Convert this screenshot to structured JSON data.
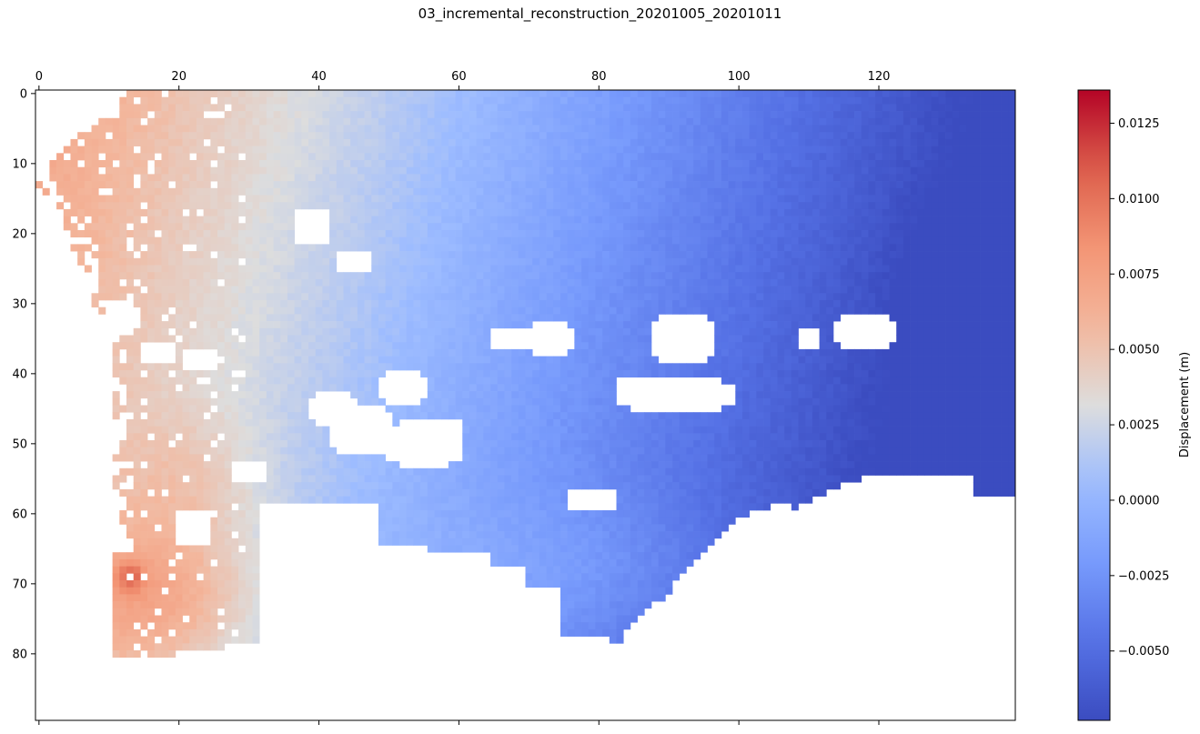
{
  "chart_data": {
    "type": "heatmap",
    "title": "03_incremental_reconstruction_20201005_20201011",
    "grid_cols": 140,
    "grid_rows": 90,
    "x_axis_position": "top",
    "xlim": [
      -0.5,
      139.5
    ],
    "ylim": [
      89.5,
      -0.5
    ],
    "x_ticks": [
      0,
      20,
      40,
      60,
      80,
      100,
      120
    ],
    "y_ticks": [
      0,
      10,
      20,
      30,
      40,
      50,
      60,
      70,
      80
    ],
    "colormap": "coolwarm",
    "vmin": -0.0073,
    "vmax": 0.0136,
    "colorbar": {
      "label": "Displacement (m)",
      "ticks": [
        -0.005,
        -0.0025,
        0.0,
        0.0025,
        0.005,
        0.0075,
        0.01,
        0.0125
      ],
      "tick_labels": [
        "−0.0050",
        "−0.0025",
        "0.0000",
        "0.0025",
        "0.0050",
        "0.0075",
        "0.0100",
        "0.0125"
      ]
    },
    "field_samples": [
      {
        "col": 5,
        "row": 12,
        "value": 0.0065
      },
      {
        "col": 20,
        "row": 5,
        "value": 0.0065
      },
      {
        "col": 40,
        "row": 10,
        "value": 0.0035
      },
      {
        "col": 60,
        "row": 10,
        "value": 0.0005
      },
      {
        "col": 80,
        "row": 20,
        "value": -0.002
      },
      {
        "col": 100,
        "row": 20,
        "value": -0.0045
      },
      {
        "col": 130,
        "row": 30,
        "value": -0.0068
      },
      {
        "col": 20,
        "row": 45,
        "value": 0.008
      },
      {
        "col": 15,
        "row": 70,
        "value": 0.011
      },
      {
        "col": 13,
        "row": 69,
        "value": 0.0135
      },
      {
        "col": 80,
        "row": 65,
        "value": -0.001
      },
      {
        "col": 110,
        "row": 50,
        "value": -0.0058
      }
    ],
    "missing_regions_note_hidden": ""
  }
}
